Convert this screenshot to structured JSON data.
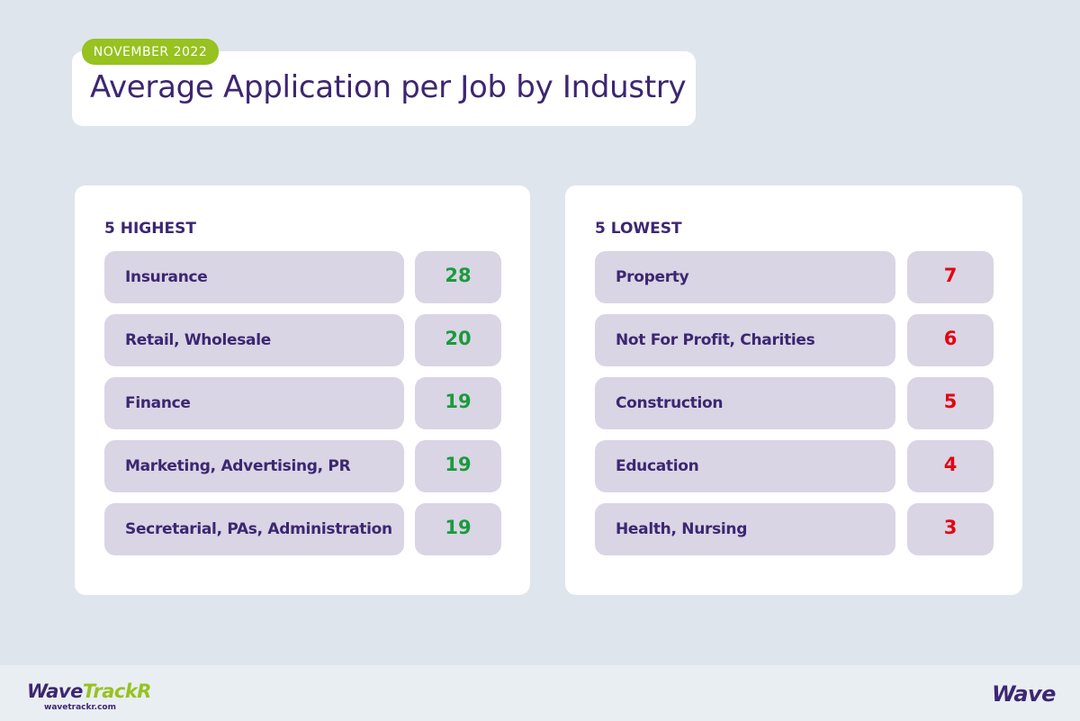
{
  "header": {
    "badge": "NOVEMBER 2022",
    "title": "Average Application per Job by Industry"
  },
  "colors": {
    "purple": "#3d2672",
    "lime": "#97c21f",
    "high": "#1a9b3d",
    "low": "#e30613"
  },
  "highest": {
    "heading": "5 HIGHEST",
    "items": [
      {
        "label": "Insurance",
        "value": "28"
      },
      {
        "label": "Retail, Wholesale",
        "value": "20"
      },
      {
        "label": "Finance",
        "value": "19"
      },
      {
        "label": "Marketing, Advertising, PR",
        "value": "19"
      },
      {
        "label": "Secretarial, PAs, Administration",
        "value": "19"
      }
    ]
  },
  "lowest": {
    "heading": "5 LOWEST",
    "items": [
      {
        "label": "Property",
        "value": "7"
      },
      {
        "label": "Not For Profit, Charities",
        "value": "6"
      },
      {
        "label": "Construction",
        "value": "5"
      },
      {
        "label": "Education",
        "value": "4"
      },
      {
        "label": "Health, Nursing",
        "value": "3"
      }
    ]
  },
  "footer": {
    "logo_part1": "Wave",
    "logo_part2": "TrackR",
    "url": "wavetrackr.com",
    "brand": "Wave"
  }
}
